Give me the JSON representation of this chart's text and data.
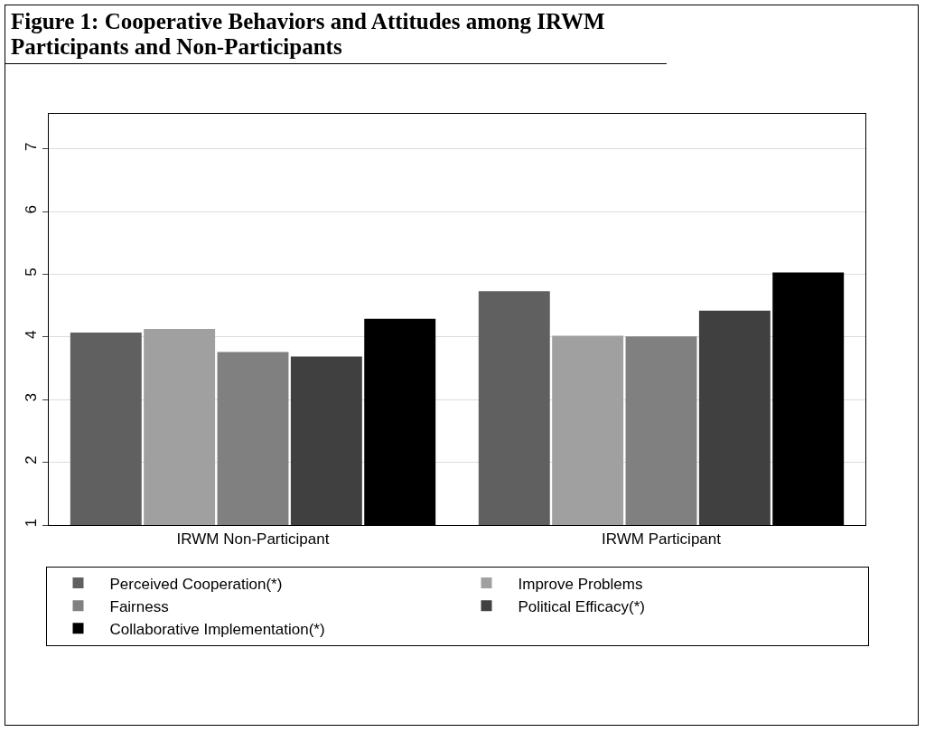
{
  "chart_data": {
    "type": "bar",
    "title": "Figure 1:  Cooperative Behaviors and Attitudes among IRWM Participants and Non-Participants",
    "categories": [
      "IRWM Non-Participant",
      "IRWM Participant"
    ],
    "series": [
      {
        "name": "Perceived Cooperation(*)",
        "color": "#606060",
        "values": [
          4.07,
          4.73
        ]
      },
      {
        "name": "Improve Problems",
        "color": "#a0a0a0",
        "values": [
          4.13,
          4.02
        ]
      },
      {
        "name": "Fairness",
        "color": "#808080",
        "values": [
          3.76,
          4.01
        ]
      },
      {
        "name": "Political Efficacy(*)",
        "color": "#404040",
        "values": [
          3.69,
          4.42
        ]
      },
      {
        "name": "Collaborative Implementation(*)",
        "color": "#000000",
        "values": [
          4.29,
          5.03
        ]
      }
    ],
    "ylim": [
      1,
      7.56
    ],
    "yticks": [
      1,
      2,
      3,
      4,
      5,
      6,
      7
    ],
    "grid": "y",
    "legend": "bottom"
  }
}
